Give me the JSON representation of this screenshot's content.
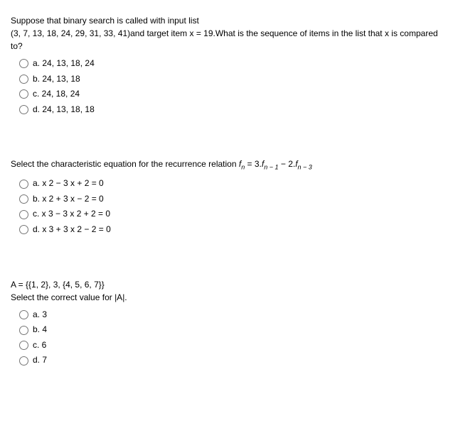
{
  "q1": {
    "stem_line1": "Suppose that binary search is called with input list",
    "stem_line2": "(3, 7, 13, 18, 24, 29, 31, 33, 41)and target item x = 19.What is the sequence of items in the list that x is compared to?",
    "opts": {
      "a": "a. 24, 13, 18, 24",
      "b": "b. 24, 13, 18",
      "c": "c. 24, 18, 24",
      "d": "d. 24, 13, 18, 18"
    }
  },
  "q2": {
    "stem_prefix": "Select the characteristic equation for the recurrence relation ",
    "f": "f",
    "sub_n": "n",
    "eq": " = 3.",
    "sub_n1": "n − 1",
    "minus": " − 2.",
    "sub_n3": "n − 3",
    "opts": {
      "a": "a. x 2 − 3 x + 2 = 0",
      "b": "b. x 2 + 3 x − 2 = 0",
      "c": "c. x 3 − 3 x 2 + 2 = 0",
      "d": "d. x 3 + 3 x 2 − 2 = 0"
    }
  },
  "q3": {
    "stem_line1": "A = {{1, 2}, 3, {4, 5, 6, 7}}",
    "stem_line2": "Select the correct value for |A|.",
    "opts": {
      "a": "a. 3",
      "b": "b. 4",
      "c": "c. 6",
      "d": "d. 7"
    }
  }
}
